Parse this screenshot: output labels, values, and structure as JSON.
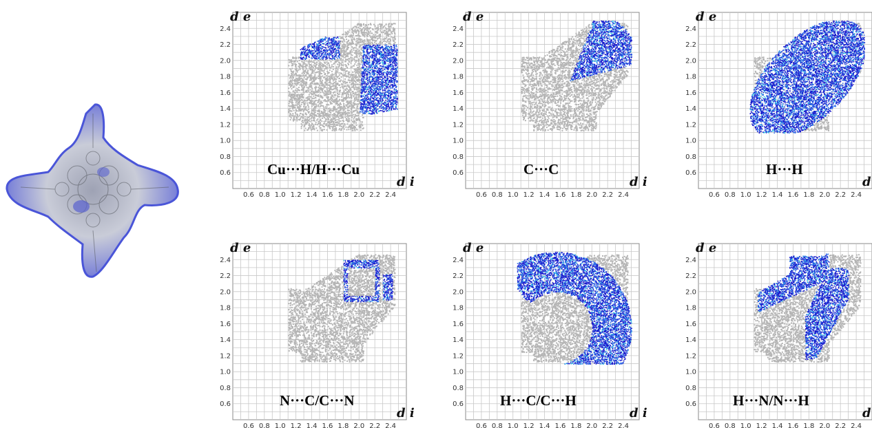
{
  "colors": {
    "background_points": "#b5b5b5",
    "highlight_dark": "#1818cc",
    "highlight_mid": "#2f6fe8",
    "highlight_light": "#35c8e8",
    "grid": "#c8c8c8",
    "surface_white": "#e8e8ee",
    "surface_blue": "#4b55d6"
  },
  "axis": {
    "y_label": "d e",
    "x_label": "d i",
    "y_ticks": [
      "0.6",
      "0.8",
      "1.0",
      "1.2",
      "1.4",
      "1.6",
      "1.8",
      "2.0",
      "2.2",
      "2.4"
    ],
    "x_ticks": [
      "0.6",
      "0.8",
      "1.0",
      "1.2",
      "1.4",
      "1.6",
      "1.8",
      "2.0",
      "2.2",
      "2.4"
    ],
    "range": [
      0.4,
      2.6
    ]
  },
  "chart_data": [
    {
      "type": "scatter",
      "label": "Cu···H/H···Cu",
      "highlight": "wings",
      "xlim": [
        0.4,
        2.6
      ],
      "ylim": [
        0.4,
        2.6
      ],
      "grid": true
    },
    {
      "type": "scatter",
      "label": "C···C",
      "highlight": "wedge",
      "xlim": [
        0.4,
        2.6
      ],
      "ylim": [
        0.4,
        2.6
      ],
      "grid": true
    },
    {
      "type": "scatter",
      "label": "H···H",
      "highlight": "blob",
      "xlim": [
        0.4,
        2.6
      ],
      "ylim": [
        0.4,
        2.6
      ],
      "grid": true
    },
    {
      "type": "scatter",
      "label": "N···C/C···N",
      "highlight": "box",
      "xlim": [
        0.4,
        2.6
      ],
      "ylim": [
        0.4,
        2.6
      ],
      "grid": true
    },
    {
      "type": "scatter",
      "label": "H···C/C···H",
      "highlight": "arc",
      "xlim": [
        0.4,
        2.6
      ],
      "ylim": [
        0.4,
        2.6
      ],
      "grid": true
    },
    {
      "type": "scatter",
      "label": "H···N/N···H",
      "highlight": "double_wing",
      "xlim": [
        0.4,
        2.6
      ],
      "ylim": [
        0.4,
        2.6
      ],
      "grid": true
    }
  ]
}
